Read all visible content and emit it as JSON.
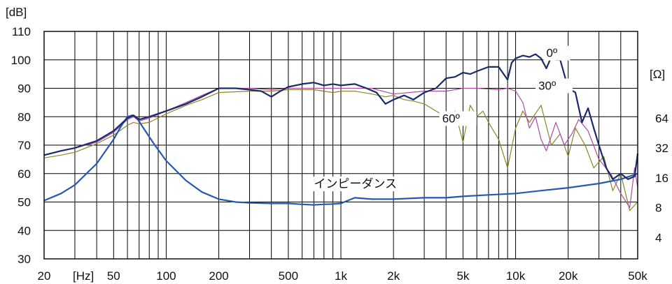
{
  "chart_data": {
    "type": "line",
    "x_scale": "log",
    "y_scale": "linear",
    "grid": true,
    "xlim": [
      20,
      50000
    ],
    "ylim": [
      30,
      110
    ],
    "y2lim_log2_ohm": [
      2,
      64
    ],
    "units": {
      "y": "[dB]",
      "x": "[Hz]",
      "y2": "[Ω]"
    },
    "x_ticks": [
      {
        "v": 20,
        "label": "20"
      },
      {
        "v": 50,
        "label": "50"
      },
      {
        "v": 100,
        "label": "100"
      },
      {
        "v": 200,
        "label": "200"
      },
      {
        "v": 500,
        "label": "500"
      },
      {
        "v": 1000,
        "label": "1k"
      },
      {
        "v": 2000,
        "label": "2k"
      },
      {
        "v": 5000,
        "label": "5k"
      },
      {
        "v": 10000,
        "label": "10k"
      },
      {
        "v": 20000,
        "label": "20k"
      },
      {
        "v": 50000,
        "label": "50k"
      }
    ],
    "y_ticks": [
      30,
      40,
      50,
      60,
      70,
      80,
      90,
      100,
      110
    ],
    "y2_ticks": [
      {
        "v": 4,
        "label": "4"
      },
      {
        "v": 8,
        "label": "8"
      },
      {
        "v": 16,
        "label": "16"
      },
      {
        "v": 32,
        "label": "32"
      },
      {
        "v": 64,
        "label": "64"
      }
    ],
    "series": [
      {
        "name": "0º",
        "color": "#1b2a6b",
        "x": [
          20,
          25,
          30,
          40,
          50,
          60,
          65,
          70,
          80,
          100,
          130,
          160,
          200,
          250,
          300,
          350,
          400,
          450,
          500,
          600,
          700,
          800,
          900,
          1000,
          1200,
          1400,
          1600,
          1800,
          2000,
          2300,
          2600,
          3000,
          3500,
          4000,
          4500,
          5000,
          5500,
          6000,
          7000,
          8000,
          9000,
          9500,
          10000,
          11000,
          12000,
          13000,
          14000,
          15000,
          16000,
          17000,
          18000,
          20000,
          22000,
          24000,
          26000,
          28000,
          30000,
          33000,
          36000,
          40000,
          44000,
          48000,
          50000
        ],
        "y": [
          66.5,
          68,
          69,
          71.5,
          75,
          79.5,
          80.5,
          79,
          80,
          82,
          84.5,
          87,
          90,
          90,
          89.5,
          89,
          87,
          89,
          90.5,
          91.5,
          92,
          91,
          91.5,
          91,
          91.5,
          90,
          88.5,
          84.5,
          86,
          87.5,
          86,
          88.5,
          90,
          93.5,
          94,
          95.5,
          95,
          96,
          97.5,
          97.5,
          93,
          99,
          100.5,
          101.5,
          101,
          102,
          100.5,
          97,
          101,
          100,
          100,
          90,
          88.5,
          78,
          83,
          76,
          70,
          62,
          58,
          60,
          58,
          59,
          67
        ]
      },
      {
        "name": "30º",
        "color": "#b04aa6",
        "x": [
          20,
          25,
          30,
          40,
          50,
          60,
          65,
          70,
          80,
          100,
          130,
          160,
          200,
          300,
          400,
          500,
          700,
          900,
          1000,
          1500,
          2000,
          3000,
          4000,
          5000,
          6000,
          8000,
          9000,
          10000,
          11000,
          12000,
          13000,
          14000,
          15000,
          17000,
          19000,
          21000,
          23000,
          26000,
          30000,
          35000,
          40000,
          45000,
          48000,
          50000
        ],
        "y": [
          66.5,
          68,
          69,
          71,
          74.5,
          79,
          80,
          78.5,
          79.5,
          82,
          85,
          87.5,
          90,
          90,
          89.5,
          90,
          90,
          90,
          90,
          90,
          88,
          89,
          89,
          90,
          90,
          89.5,
          90,
          89,
          85,
          76,
          80,
          72,
          68,
          78,
          70,
          74,
          79,
          75,
          65,
          60,
          53,
          48,
          62,
          55
        ]
      },
      {
        "name": "60º",
        "color": "#8a8628",
        "x": [
          20,
          25,
          30,
          40,
          50,
          60,
          65,
          70,
          80,
          100,
          130,
          160,
          200,
          300,
          400,
          500,
          700,
          900,
          1000,
          1200,
          1500,
          1800,
          2000,
          2300,
          2600,
          3000,
          3500,
          4000,
          4500,
          5000,
          5500,
          6000,
          6500,
          7000,
          8000,
          9000,
          10000,
          11000,
          12000,
          14000,
          16000,
          18000,
          20000,
          22000,
          25000,
          28000,
          32000,
          36000,
          40000,
          45000,
          50000
        ],
        "y": [
          65.5,
          66.5,
          67.5,
          70.5,
          73.5,
          77,
          78,
          77.5,
          78,
          81,
          84,
          86,
          88.5,
          89,
          89,
          89.5,
          89.5,
          88.5,
          89,
          89,
          88,
          87,
          87.5,
          86,
          85.5,
          84.5,
          82,
          80,
          82,
          71,
          84,
          80,
          82,
          78,
          72,
          62,
          76,
          82,
          78,
          84,
          70,
          74,
          66,
          76,
          70,
          62,
          66,
          54,
          60,
          47,
          50
        ]
      },
      {
        "name": "インピーダンス",
        "color": "#2559b0",
        "x": [
          20,
          25,
          30,
          40,
          50,
          55,
          60,
          64,
          68,
          75,
          85,
          100,
          130,
          160,
          200,
          250,
          300,
          400,
          500,
          600,
          700,
          800,
          900,
          1000,
          1200,
          1500,
          2000,
          3000,
          4000,
          5000,
          7000,
          10000,
          14000,
          20000,
          30000,
          40000,
          50000
        ],
        "y": [
          50.5,
          53,
          56,
          63.5,
          72,
          76.5,
          80,
          80.5,
          79.5,
          75.5,
          70.5,
          64.5,
          57.5,
          53.5,
          51,
          50,
          49.7,
          49.5,
          49.5,
          49.2,
          49,
          49.2,
          49.3,
          49.5,
          51.5,
          51,
          51,
          51.5,
          51.5,
          52,
          52.5,
          53,
          54,
          55,
          56.5,
          58,
          60
        ]
      }
    ],
    "annotations": [
      {
        "text": "0º",
        "x": 15000,
        "y": 101
      },
      {
        "text": "30º",
        "x": 13500,
        "y": 89.5
      },
      {
        "text": "60º",
        "x": 3800,
        "y": 78
      },
      {
        "text": "インピーダンス",
        "x": 700,
        "y": 55
      }
    ]
  }
}
